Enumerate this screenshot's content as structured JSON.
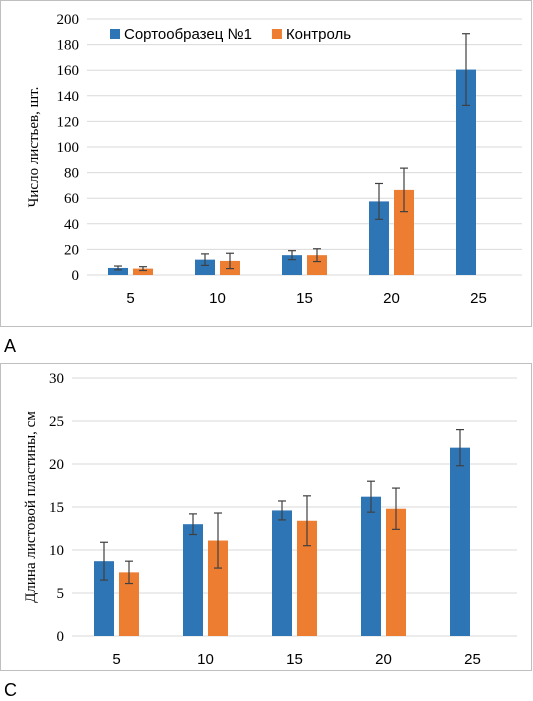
{
  "panel_labels": [
    "A",
    "C"
  ],
  "colors": {
    "series1": "#2E75B6",
    "series2": "#ED7D31",
    "grid": "#D9D9D9",
    "frame": "#BFBFBF",
    "error": "#404040",
    "text": "#000000"
  },
  "chart_data": [
    {
      "type": "bar",
      "title": "",
      "xlabel": "",
      "ylabel": "Число листьев, шт.",
      "categories": [
        "5",
        "10",
        "15",
        "20",
        "25"
      ],
      "ylim": [
        0,
        200
      ],
      "yticks": [
        "0",
        "20",
        "40",
        "60",
        "80",
        "100",
        "120",
        "140",
        "160",
        "180",
        "200"
      ],
      "grid": true,
      "legend": "top-left",
      "series": [
        {
          "name": "Сортообразец №1",
          "values": [
            5.5,
            12,
            15.5,
            57.5,
            160.5
          ],
          "errors": [
            1.5,
            4.5,
            3.5,
            14,
            28
          ]
        },
        {
          "name": "Контроль",
          "values": [
            5,
            11,
            15.5,
            66.5,
            null
          ],
          "errors": [
            1.5,
            6,
            5,
            17,
            null
          ]
        }
      ]
    },
    {
      "type": "bar",
      "title": "",
      "xlabel": "",
      "ylabel": "Длина листовой пластины, см",
      "categories": [
        "5",
        "10",
        "15",
        "20",
        "25"
      ],
      "ylim": [
        0,
        30
      ],
      "yticks": [
        "0",
        "5",
        "10",
        "15",
        "20",
        "25",
        "30"
      ],
      "grid": true,
      "legend": "",
      "series": [
        {
          "name": "",
          "values": [
            8.7,
            13,
            14.6,
            16.2,
            21.9
          ],
          "errors": [
            2.2,
            1.2,
            1.1,
            1.8,
            2.1
          ]
        },
        {
          "name": "",
          "values": [
            7.4,
            11.1,
            13.4,
            14.8,
            null
          ],
          "errors": [
            1.3,
            3.2,
            2.9,
            2.4,
            null
          ]
        }
      ]
    }
  ]
}
